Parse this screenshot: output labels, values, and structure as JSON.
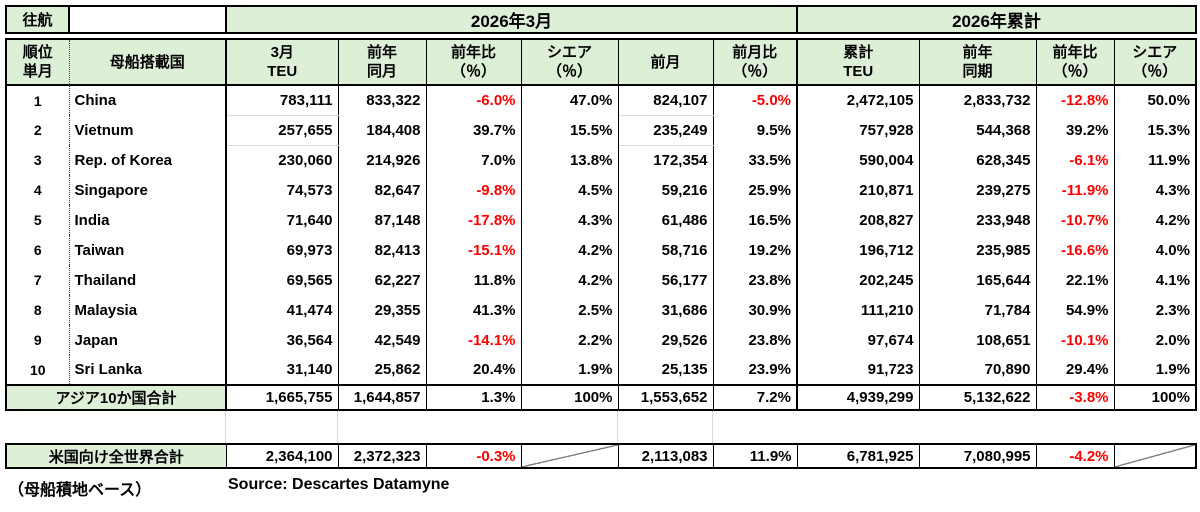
{
  "banner": {
    "direction": "往航",
    "month_section": "2026年3月",
    "cumulative_section": "2026年累計"
  },
  "header": {
    "rank": [
      "順位",
      "単月"
    ],
    "country": "母船搭載国",
    "cols": [
      [
        "3月",
        "TEU"
      ],
      [
        "前年",
        "同月"
      ],
      [
        "前年比",
        "（％）"
      ],
      [
        "シエア",
        "（％）"
      ],
      [
        "前月",
        ""
      ],
      [
        "前月比",
        "（％）"
      ],
      [
        "累計",
        "TEU"
      ],
      [
        "前年",
        "同期"
      ],
      [
        "前年比",
        "（％）"
      ],
      [
        "シエア",
        "（％）"
      ]
    ]
  },
  "rows": [
    {
      "rank": "1",
      "country": "China",
      "values": [
        "783,111",
        "833,322",
        "-6.0%",
        "47.0%",
        "824,107",
        "-5.0%",
        "2,472,105",
        "2,833,732",
        "-12.8%",
        "50.0%"
      ]
    },
    {
      "rank": "2",
      "country": "Vietnum",
      "values": [
        "257,655",
        "184,408",
        "39.7%",
        "15.5%",
        "235,249",
        "9.5%",
        "757,928",
        "544,368",
        "39.2%",
        "15.3%"
      ]
    },
    {
      "rank": "3",
      "country": "Rep. of Korea",
      "values": [
        "230,060",
        "214,926",
        "7.0%",
        "13.8%",
        "172,354",
        "33.5%",
        "590,004",
        "628,345",
        "-6.1%",
        "11.9%"
      ]
    },
    {
      "rank": "4",
      "country": "Singapore",
      "values": [
        "74,573",
        "82,647",
        "-9.8%",
        "4.5%",
        "59,216",
        "25.9%",
        "210,871",
        "239,275",
        "-11.9%",
        "4.3%"
      ]
    },
    {
      "rank": "5",
      "country": "India",
      "values": [
        "71,640",
        "87,148",
        "-17.8%",
        "4.3%",
        "61,486",
        "16.5%",
        "208,827",
        "233,948",
        "-10.7%",
        "4.2%"
      ]
    },
    {
      "rank": "6",
      "country": "Taiwan",
      "values": [
        "69,973",
        "82,413",
        "-15.1%",
        "4.2%",
        "58,716",
        "19.2%",
        "196,712",
        "235,985",
        "-16.6%",
        "4.0%"
      ]
    },
    {
      "rank": "7",
      "country": "Thailand",
      "values": [
        "69,565",
        "62,227",
        "11.8%",
        "4.2%",
        "56,177",
        "23.8%",
        "202,245",
        "165,644",
        "22.1%",
        "4.1%"
      ]
    },
    {
      "rank": "8",
      "country": "Malaysia",
      "values": [
        "41,474",
        "29,355",
        "41.3%",
        "2.5%",
        "31,686",
        "30.9%",
        "111,210",
        "71,784",
        "54.9%",
        "2.3%"
      ]
    },
    {
      "rank": "9",
      "country": "Japan",
      "values": [
        "36,564",
        "42,549",
        "-14.1%",
        "2.2%",
        "29,526",
        "23.8%",
        "97,674",
        "108,651",
        "-10.1%",
        "2.0%"
      ]
    },
    {
      "rank": "10",
      "country": "Sri Lanka",
      "values": [
        "31,140",
        "25,862",
        "20.4%",
        "1.9%",
        "25,135",
        "23.9%",
        "91,723",
        "70,890",
        "29.4%",
        "1.9%"
      ]
    }
  ],
  "asia_total": {
    "label": "アジア10か国合計",
    "values": [
      "1,665,755",
      "1,644,857",
      "1.3%",
      "100%",
      "1,553,652",
      "7.2%",
      "4,939,299",
      "5,132,622",
      "-3.8%",
      "100%"
    ]
  },
  "world_total": {
    "label": "米国向け全世界合計",
    "values": [
      "2,364,100",
      "2,372,323",
      "-0.3%",
      null,
      "2,113,083",
      "11.9%",
      "6,781,925",
      "7,080,995",
      "-4.2%",
      null
    ]
  },
  "footer": {
    "note": "（母船積地ベース）",
    "source": "Source:  Descartes Datamyne"
  },
  "colors": {
    "header_green": "#DEEFD8",
    "negative_red": "#FF0000",
    "border_black": "#000000"
  }
}
